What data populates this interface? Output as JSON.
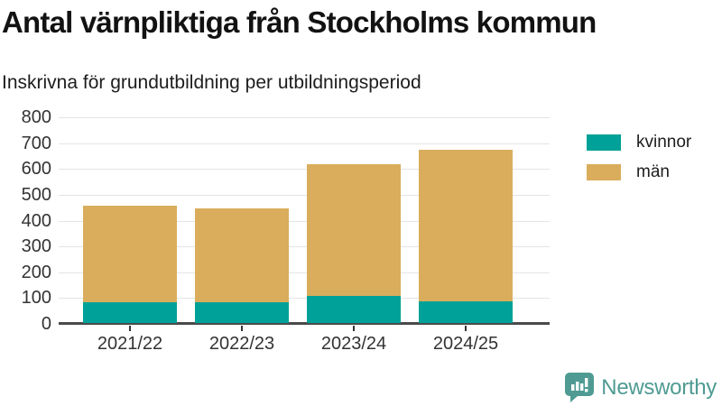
{
  "title": "Antal värnpliktiga från Stockholms kommun",
  "subtitle": "Inskrivna för grundutbildning per utbildningsperiod",
  "chart_data": {
    "type": "bar",
    "stacked": true,
    "title": "Antal värnpliktiga från Stockholms kommun",
    "subtitle": "Inskrivna för grundutbildning per utbildningsperiod",
    "categories": [
      "2021/22",
      "2022/23",
      "2023/24",
      "2024/25"
    ],
    "series": [
      {
        "name": "kvinnor",
        "color": "#00A198",
        "values": [
          80,
          80,
          105,
          85
        ]
      },
      {
        "name": "män",
        "color": "#D9AD5C",
        "values": [
          375,
          365,
          510,
          585
        ]
      }
    ],
    "xlabel": "",
    "ylabel": "",
    "ylim": [
      0,
      800
    ],
    "ytick_step": 100,
    "grid": true,
    "legend_position": "right"
  },
  "colors": {
    "kvinnor": "#00A198",
    "man": "#D9AD5C",
    "grid": "#E4E4E4",
    "axis": "#4A4A4A",
    "tick_text": "#333333",
    "brand": "#4F9B93"
  },
  "footer": {
    "brand": "Newsworthy",
    "logo_icon": "bar-chart-speech-bubble-icon"
  }
}
